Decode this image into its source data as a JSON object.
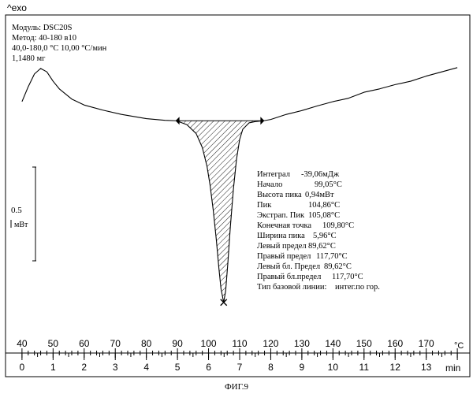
{
  "chart_data": {
    "type": "line",
    "y_header": "^exo",
    "info": [
      "Модуль:  DSC20S",
      "Метод:  40-180 в10",
      "40,0-180,0 °C 10,00 °C/мин",
      "1,1480 мг"
    ],
    "scale_bar": {
      "value": "0.5",
      "unit": "мВт"
    },
    "annotations": [
      {
        "label": "Интеграл",
        "value": "-39,06мДж"
      },
      {
        "label": "Начало",
        "value": "99,05°C"
      },
      {
        "label": "Высота пика",
        "value": "0,94мВт"
      },
      {
        "label": "Пик",
        "value": "104,86°C"
      },
      {
        "label": "Экстрап. Пик",
        "value": "105,08°C"
      },
      {
        "label": "Конечная точка",
        "value": "109,80°C"
      },
      {
        "label": "Ширина пика",
        "value": "5,96°C"
      },
      {
        "label": "Левый предел",
        "value": "89,62°C"
      },
      {
        "label": "Правый предел",
        "value": "117,70°C"
      },
      {
        "label": "Левый бл. Предел",
        "value": "89,62°C"
      },
      {
        "label": "Правый бл.предел",
        "value": "117,70°C"
      },
      {
        "label": "Тип базовой линии:",
        "value": "интег.по гор."
      }
    ],
    "temperature_axis": {
      "unit": "°C",
      "ticks": [
        40,
        50,
        60,
        70,
        80,
        90,
        100,
        110,
        120,
        130,
        140,
        150,
        160,
        170
      ],
      "range": [
        38,
        182
      ]
    },
    "time_axis": {
      "unit": "min",
      "ticks": [
        0,
        1,
        2,
        3,
        4,
        5,
        6,
        7,
        8,
        9,
        10,
        11,
        12,
        13
      ],
      "range": [
        -0.2,
        14.2
      ]
    },
    "y_range": [
      -5.6,
      0.7
    ],
    "series": [
      {
        "x": [
          40.0,
          42.0,
          44.0,
          46.0,
          48.0,
          50.0,
          52.0,
          56.0,
          60.0,
          66.0,
          72.0,
          80.0,
          86.0,
          89.62,
          93.0,
          96.0,
          98.0,
          99.5,
          100.5,
          101.5,
          102.5,
          103.3,
          104.0,
          104.86,
          105.5,
          106.2,
          107.0,
          108.0,
          109.0,
          110.0,
          111.0,
          113.0,
          115.0,
          117.7,
          120.0,
          125.0,
          130.0,
          135.0,
          140.0,
          145.0,
          150.0,
          155.0,
          160.0,
          165.0,
          170.0,
          175.0,
          180.0
        ],
        "y": [
          -0.3,
          0.05,
          0.35,
          0.48,
          0.4,
          0.18,
          0.0,
          -0.24,
          -0.38,
          -0.5,
          -0.6,
          -0.7,
          -0.74,
          -0.75,
          -0.84,
          -1.05,
          -1.38,
          -1.82,
          -2.27,
          -2.85,
          -3.55,
          -4.2,
          -4.7,
          -5.02,
          -4.75,
          -4.1,
          -3.25,
          -2.35,
          -1.65,
          -1.19,
          -0.95,
          -0.8,
          -0.77,
          -0.75,
          -0.72,
          -0.6,
          -0.51,
          -0.4,
          -0.3,
          -0.22,
          -0.08,
          0.0,
          0.1,
          0.18,
          0.3,
          0.4,
          0.5
        ]
      }
    ],
    "baseline": {
      "x": [
        89.62,
        117.7
      ],
      "y": [
        -0.75,
        -0.75
      ]
    },
    "peak_marker": {
      "x": 104.86,
      "y": -5.02
    }
  },
  "caption": "ФИГ.9"
}
